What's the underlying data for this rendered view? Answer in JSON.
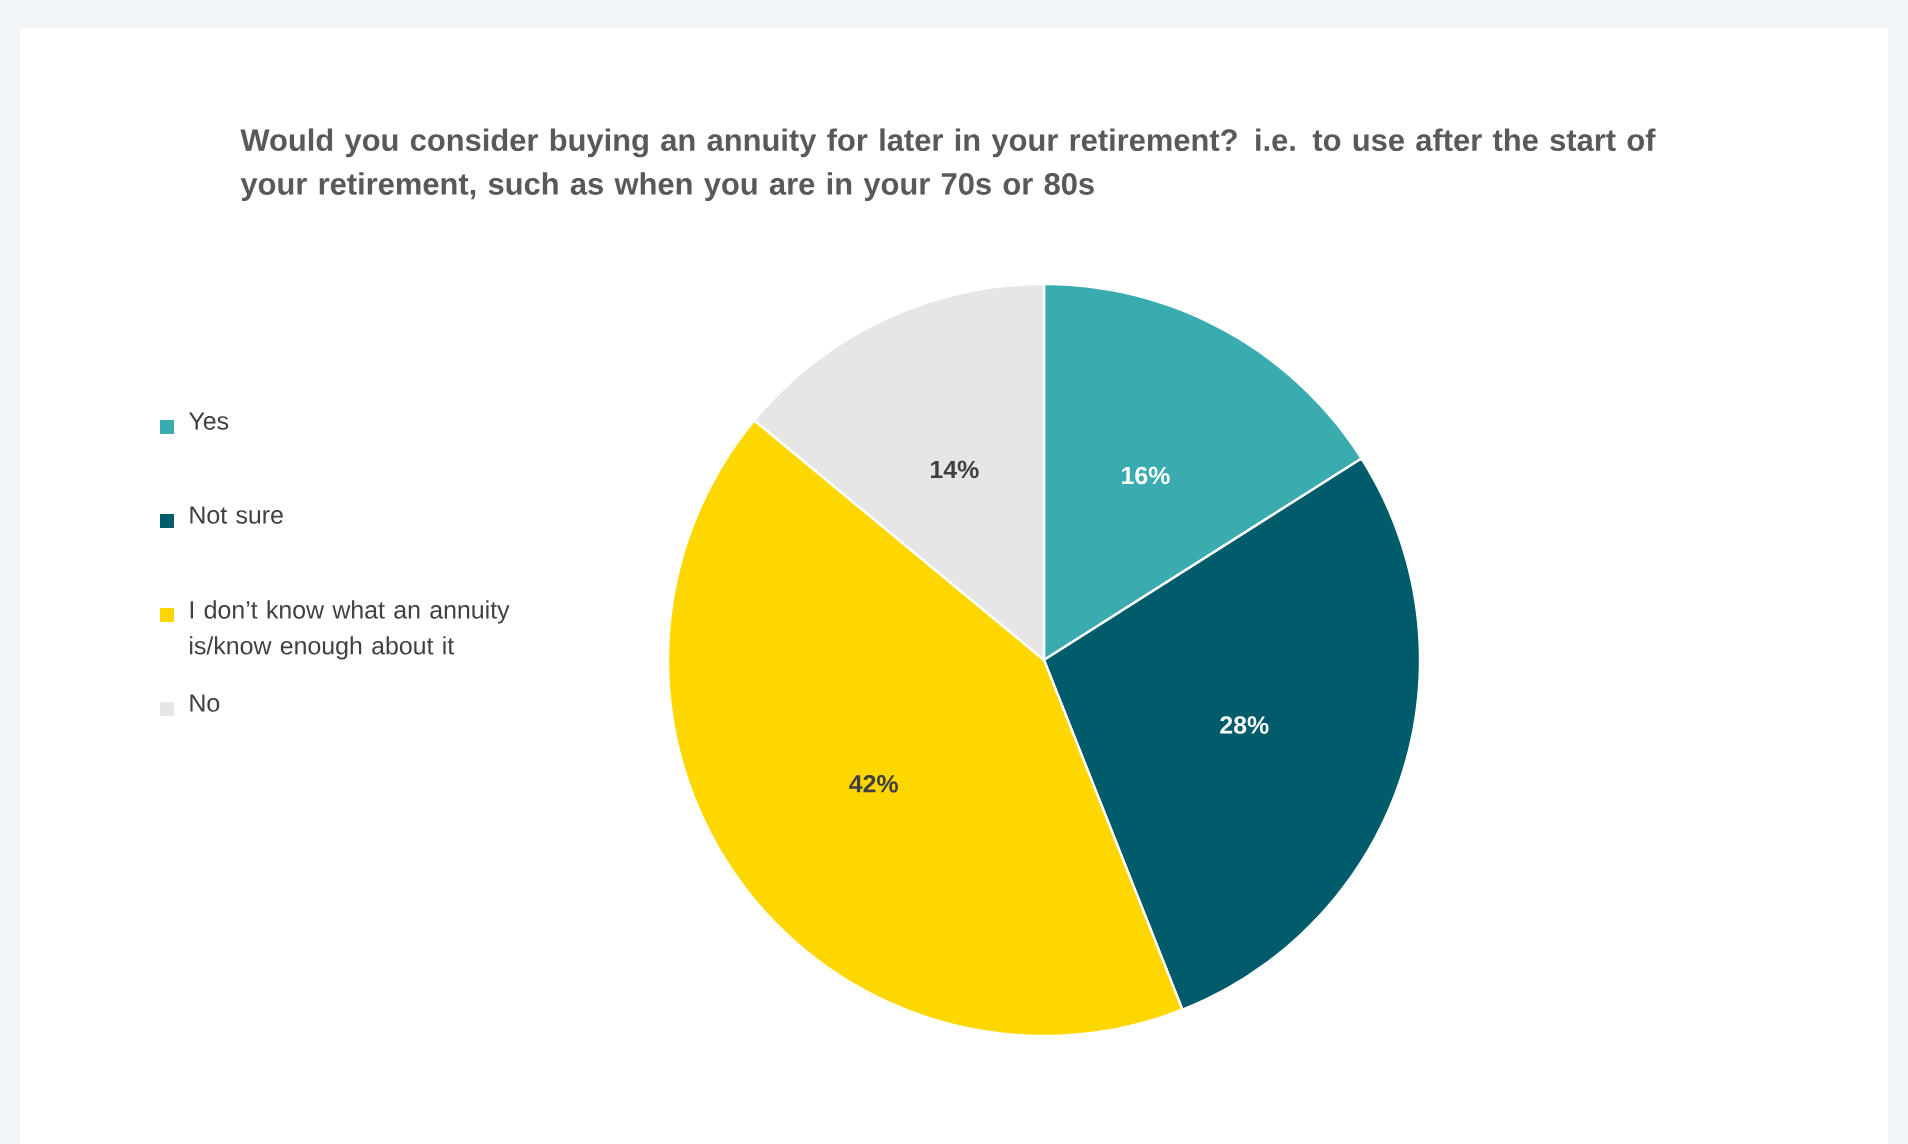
{
  "chart_data": {
    "type": "pie",
    "title": "Would you consider buying an annuity for later in your retirement? i.e. to use after the start of your retirement, such as when you are in your 70s or 80s",
    "categories": [
      "Yes",
      "Not sure",
      "I don’t know what an annuity is/know enough about it",
      "No"
    ],
    "values": [
      16,
      28,
      42,
      14
    ],
    "colors": [
      "#3aabae",
      "#005b6b",
      "#ffd700",
      "#e6e6e6"
    ],
    "value_labels": [
      "16%",
      "28%",
      "42%",
      "14%"
    ],
    "legend": "left"
  }
}
